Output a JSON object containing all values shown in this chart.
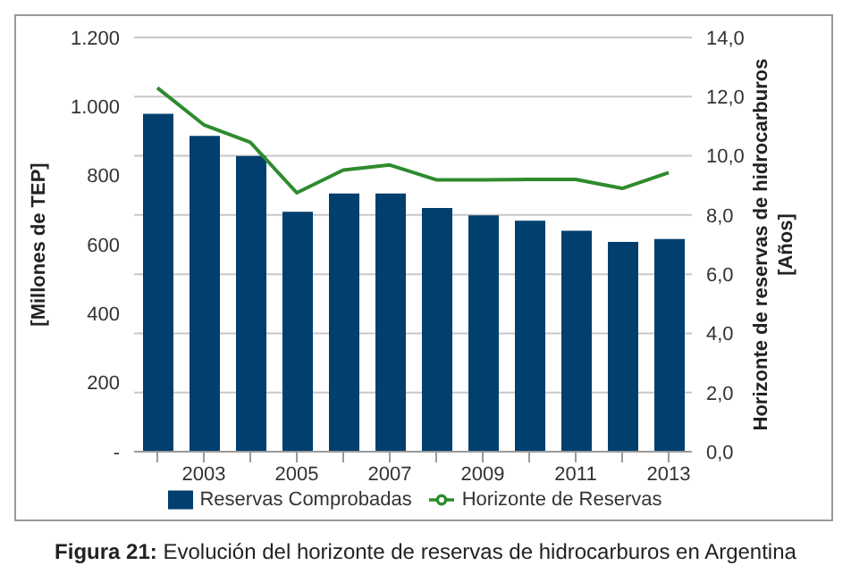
{
  "chart_data": {
    "type": "bar",
    "categories": [
      null,
      "2003",
      null,
      "2005",
      null,
      "2007",
      null,
      "2009",
      null,
      "2011",
      null,
      "2013"
    ],
    "series": [
      {
        "name": "Reservas Comprobadas",
        "color": "#003f6e",
        "values": [
          979,
          915,
          857,
          695,
          748,
          748,
          706,
          685,
          669,
          640,
          608,
          616
        ]
      },
      {
        "name": "Horizonte de Reservas",
        "type": "line",
        "axis": "y2",
        "color": "#2e8b2e",
        "marker": "none",
        "values": [
          12.3,
          11.05,
          10.46,
          8.75,
          9.52,
          9.69,
          9.19,
          9.19,
          9.2,
          9.2,
          8.9,
          9.43
        ]
      }
    ],
    "ylabel": "[Millones de TEP]",
    "y2label": "Horizonte de reservas de hidrocarburos [Años]",
    "ylim": [
      0,
      1200
    ],
    "yticks": [
      {
        "value": 0,
        "label": "-"
      },
      200,
      400,
      600,
      800,
      {
        "value": 1000,
        "label": "1.000"
      },
      {
        "value": 1200,
        "label": "1.200"
      }
    ],
    "y2lim": [
      0,
      14
    ],
    "y2ticks": [
      {
        "value": 0,
        "label": "0,0"
      },
      {
        "value": 2,
        "label": "2,0"
      },
      {
        "value": 4,
        "label": "4,0"
      },
      {
        "value": 6,
        "label": "6,0"
      },
      {
        "value": 8,
        "label": "8,0"
      },
      {
        "value": 10,
        "label": "10,0"
      },
      {
        "value": 12,
        "label": "12,0"
      },
      {
        "value": 14,
        "label": "14,0"
      }
    ],
    "grid": "y",
    "legend": "bottom",
    "annotations": [
      "Figura 21: Evolución del horizonte de reservas de hidrocarburos en Argentina"
    ]
  }
}
